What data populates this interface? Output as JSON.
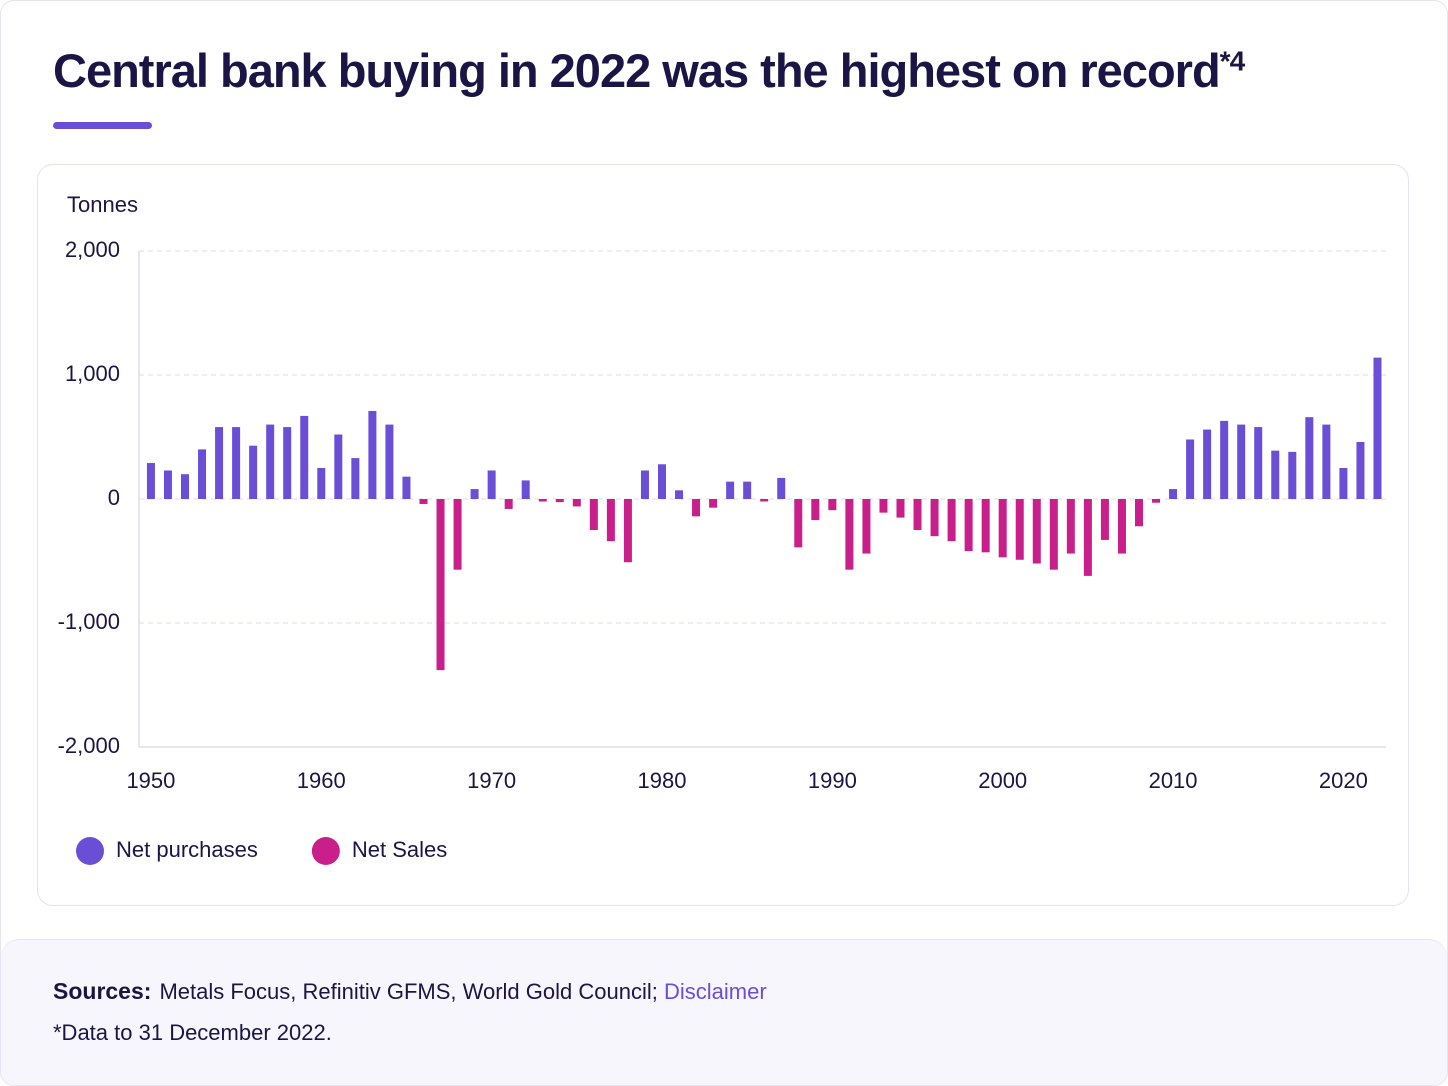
{
  "header": {
    "title": "Central bank buying in 2022 was the highest on record",
    "title_note": "*4"
  },
  "chart_data": {
    "type": "bar",
    "y_label": "Tonnes",
    "x": [
      1950,
      1951,
      1952,
      1953,
      1954,
      1955,
      1956,
      1957,
      1958,
      1959,
      1960,
      1961,
      1962,
      1963,
      1964,
      1965,
      1966,
      1967,
      1968,
      1969,
      1970,
      1971,
      1972,
      1973,
      1974,
      1975,
      1976,
      1977,
      1978,
      1979,
      1980,
      1981,
      1982,
      1983,
      1984,
      1985,
      1986,
      1987,
      1988,
      1989,
      1990,
      1991,
      1992,
      1993,
      1994,
      1995,
      1996,
      1997,
      1998,
      1999,
      2000,
      2001,
      2002,
      2003,
      2004,
      2005,
      2006,
      2007,
      2008,
      2009,
      2010,
      2011,
      2012,
      2013,
      2014,
      2015,
      2016,
      2017,
      2018,
      2019,
      2020,
      2021,
      2022
    ],
    "values": [
      290,
      230,
      200,
      400,
      580,
      580,
      430,
      600,
      580,
      670,
      250,
      520,
      330,
      710,
      600,
      180,
      -40,
      -1380,
      -570,
      80,
      230,
      -80,
      150,
      -20,
      -25,
      -60,
      -250,
      -340,
      -510,
      230,
      280,
      70,
      -140,
      -70,
      140,
      140,
      -20,
      170,
      -390,
      -170,
      -90,
      -570,
      -440,
      -110,
      -150,
      -250,
      -300,
      -340,
      -420,
      -430,
      -470,
      -490,
      -520,
      -570,
      -440,
      -620,
      -330,
      -440,
      -220,
      -30,
      80,
      480,
      560,
      630,
      600,
      580,
      390,
      380,
      660,
      600,
      250,
      460,
      1140
    ],
    "legend": [
      {
        "name": "Net purchases",
        "color": "#6a4fd6"
      },
      {
        "name": "Net Sales",
        "color": "#c81f8a"
      }
    ],
    "xlim": [
      1949.3,
      2022.5
    ],
    "xticks": [
      1950,
      1960,
      1970,
      1980,
      1990,
      2000,
      2010,
      2020
    ],
    "ylim": [
      -2000,
      2000
    ],
    "yticks": [
      {
        "value": 2000,
        "label": "2,000"
      },
      {
        "value": 1000,
        "label": "1,000"
      },
      0,
      {
        "value": -1000,
        "label": "-1,000"
      },
      {
        "value": -2000,
        "label": "-2,000"
      }
    ],
    "grid": true
  },
  "footer": {
    "sources_label": "Sources:",
    "sources": "Metals Focus, Refinitiv GFMS, World Gold Council;",
    "disclaimer": "Disclaimer",
    "note": "*Data to 31 December 2022."
  }
}
